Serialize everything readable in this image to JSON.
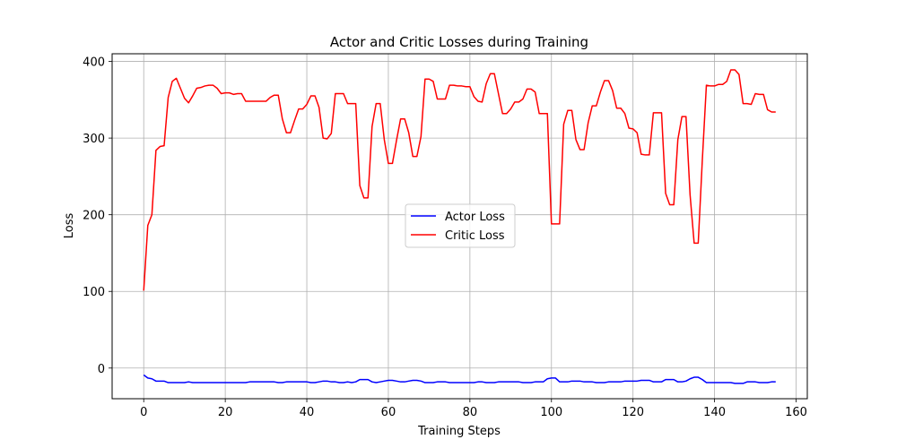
{
  "chart_data": {
    "type": "line",
    "title": "Actor and Critic Losses during Training",
    "xlabel": "Training Steps",
    "ylabel": "Loss",
    "xlim": [
      -7.75,
      162.75
    ],
    "ylim": [
      -40,
      410
    ],
    "xticks": [
      0,
      20,
      40,
      60,
      80,
      100,
      120,
      140,
      160
    ],
    "yticks": [
      0,
      100,
      200,
      300,
      400
    ],
    "grid": true,
    "legend_position": "center",
    "series": [
      {
        "name": "Actor Loss",
        "color": "#0000ff",
        "values": [
          -9,
          -13,
          -14,
          -17,
          -17,
          -17,
          -19,
          -19,
          -19,
          -19,
          -19,
          -18,
          -19,
          -19,
          -19,
          -19,
          -19,
          -19,
          -19,
          -19,
          -19,
          -19,
          -19,
          -19,
          -19,
          -19,
          -18,
          -18,
          -18,
          -18,
          -18,
          -18,
          -18,
          -19,
          -19,
          -18,
          -18,
          -18,
          -18,
          -18,
          -18,
          -19,
          -19,
          -18,
          -17,
          -17,
          -18,
          -18,
          -19,
          -19,
          -18,
          -19,
          -18,
          -15,
          -15,
          -15,
          -18,
          -19,
          -18,
          -17,
          -16,
          -16,
          -17,
          -18,
          -18,
          -17,
          -16,
          -16,
          -17,
          -19,
          -19,
          -19,
          -18,
          -18,
          -18,
          -19,
          -19,
          -19,
          -19,
          -19,
          -19,
          -19,
          -18,
          -18,
          -19,
          -19,
          -19,
          -18,
          -18,
          -18,
          -18,
          -18,
          -18,
          -19,
          -19,
          -19,
          -18,
          -18,
          -18,
          -14,
          -13,
          -13,
          -18,
          -18,
          -18,
          -17,
          -17,
          -17,
          -18,
          -18,
          -18,
          -19,
          -19,
          -19,
          -18,
          -18,
          -18,
          -18,
          -17,
          -17,
          -17,
          -17,
          -16,
          -16,
          -16,
          -18,
          -18,
          -18,
          -15,
          -15,
          -15,
          -18,
          -18,
          -17,
          -14,
          -12,
          -12,
          -15,
          -19,
          -19,
          -19,
          -19,
          -19,
          -19,
          -19,
          -20,
          -20,
          -20,
          -18,
          -18,
          -18,
          -19,
          -19,
          -19,
          -18,
          -18
        ]
      },
      {
        "name": "Critic Loss",
        "color": "#ff0000",
        "values": [
          101,
          186,
          200,
          284,
          289,
          290,
          353,
          374,
          378,
          365,
          352,
          346,
          355,
          365,
          366,
          368,
          369,
          369,
          365,
          358,
          359,
          359,
          357,
          358,
          358,
          348,
          348,
          348,
          348,
          348,
          348,
          353,
          356,
          356,
          325,
          307,
          307,
          323,
          338,
          338,
          344,
          355,
          355,
          340,
          300,
          299,
          306,
          358,
          358,
          358,
          345,
          345,
          345,
          238,
          222,
          222,
          315,
          345,
          345,
          298,
          267,
          267,
          297,
          325,
          325,
          307,
          276,
          276,
          302,
          377,
          377,
          374,
          351,
          351,
          351,
          369,
          369,
          368,
          368,
          367,
          367,
          354,
          348,
          347,
          371,
          384,
          384,
          358,
          332,
          332,
          338,
          347,
          347,
          351,
          364,
          364,
          360,
          332,
          332,
          332,
          188,
          188,
          188,
          318,
          336,
          336,
          298,
          285,
          285,
          320,
          342,
          342,
          360,
          375,
          375,
          362,
          339,
          339,
          332,
          313,
          312,
          307,
          279,
          278,
          278,
          333,
          333,
          333,
          228,
          213,
          213,
          298,
          328,
          328,
          226,
          163,
          163,
          271,
          369,
          368,
          368,
          370,
          370,
          374,
          389,
          389,
          383,
          345,
          345,
          344,
          358,
          357,
          357,
          337,
          334,
          334
        ]
      }
    ]
  }
}
